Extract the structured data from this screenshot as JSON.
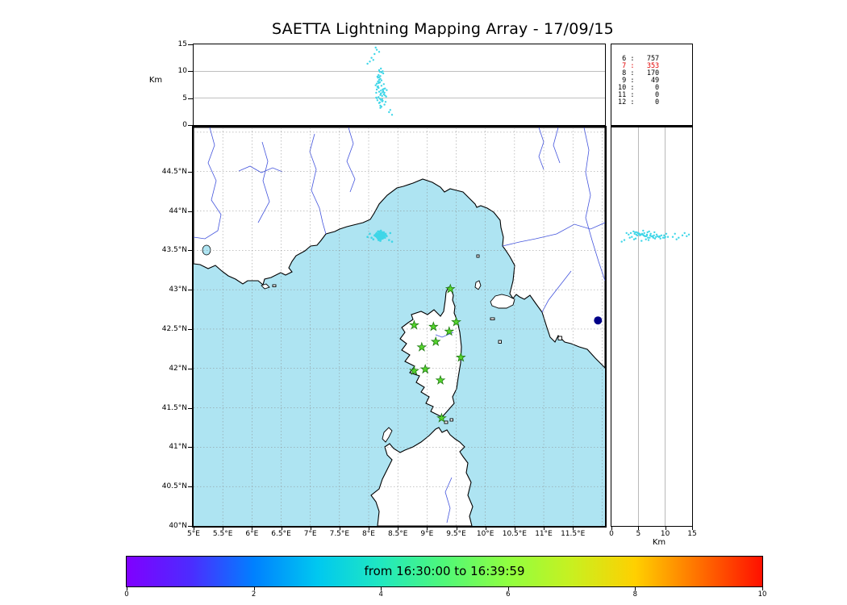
{
  "title": "SAETTA Lightning Mapping Array - 17/09/15",
  "labels": {
    "km": "Km"
  },
  "colors": {
    "sea": "#aee4f2",
    "land": "#ffffff",
    "coastline": "#000000",
    "river": "#4455dd",
    "grid": "#888888",
    "lightning_dot": "#3fd6e8",
    "station_star_fill": "#55d42c",
    "station_star_edge": "#1f7a12",
    "lake_marker": "#000088",
    "highlight_count": "#e00000"
  },
  "station_counts": {
    "rows": [
      {
        "station": "6",
        "count": "757",
        "highlight": false
      },
      {
        "station": "7",
        "count": "353",
        "highlight": true
      },
      {
        "station": "8",
        "count": "170",
        "highlight": false
      },
      {
        "station": "9",
        "count": "49",
        "highlight": false
      },
      {
        "station": "10",
        "count": "0",
        "highlight": false
      },
      {
        "station": "11",
        "count": "0",
        "highlight": false
      },
      {
        "station": "12",
        "count": "0",
        "highlight": false
      }
    ]
  },
  "axes": {
    "alt_tick_values": [
      0,
      5,
      10,
      15
    ],
    "alt_tick_labels": [
      "0",
      "5",
      "10",
      "15"
    ],
    "alt_grid_values": [
      5,
      10
    ],
    "lat_tick_values": [
      40,
      40.5,
      41,
      41.5,
      42,
      42.5,
      43,
      43.5,
      44,
      44.5
    ],
    "lat_tick_labels": [
      "40°N",
      "40.5°N",
      "41°N",
      "41.5°N",
      "42°N",
      "42.5°N",
      "43°N",
      "43.5°N",
      "44°N",
      "44.5°N"
    ],
    "lon_tick_values": [
      5,
      5.5,
      6,
      6.5,
      7,
      7.5,
      8,
      8.5,
      9,
      9.5,
      10,
      10.5,
      11,
      11.5
    ],
    "lon_tick_labels": [
      "5°E",
      "5.5°E",
      "6°E",
      "6.5°E",
      "7°E",
      "7.5°E",
      "8°E",
      "8.5°E",
      "9°E",
      "9.5°E",
      "10°E",
      "10.5°E",
      "11°E",
      "11.5°E"
    ]
  },
  "colorbar": {
    "label": "from 16:30:00 to 16:39:59",
    "tick_values": [
      0,
      2,
      4,
      6,
      8,
      10
    ],
    "tick_labels": [
      "0",
      "2",
      "4",
      "6",
      "8",
      "10"
    ]
  },
  "chart_data": {
    "type": "scatter",
    "title": "SAETTA Lightning Mapping Array - 17/09/15",
    "panels": {
      "top": {
        "x": "longitude_deg_E",
        "y": "altitude_km",
        "xlim": [
          5,
          12.05
        ],
        "ylim": [
          0,
          15
        ],
        "yticks": [
          0,
          5,
          10,
          15
        ],
        "ylabel": "Km",
        "grid_y": [
          5,
          10
        ]
      },
      "main": {
        "x": "longitude_deg_E",
        "y": "latitude_deg_N",
        "xlim": [
          5,
          12.05
        ],
        "ylim": [
          40,
          45.06
        ],
        "xticks": [
          5,
          5.5,
          6,
          6.5,
          7,
          7.5,
          8,
          8.5,
          9,
          9.5,
          10,
          10.5,
          11,
          11.5
        ],
        "yticks": [
          40,
          40.5,
          41,
          41.5,
          42,
          42.5,
          43,
          43.5,
          44,
          44.5
        ],
        "grid": "dashed 0.5deg"
      },
      "right": {
        "x": "altitude_km",
        "y": "latitude_deg_N",
        "xlim": [
          0,
          15
        ],
        "ylim": [
          40,
          45.06
        ],
        "xticks": [
          0,
          5,
          10,
          15
        ],
        "xlabel": "Km",
        "grid_x": [
          5,
          10
        ]
      }
    },
    "time_window": {
      "from": "16:30:00",
      "to": "16:39:59",
      "colorbar_minutes_range": [
        0,
        10
      ]
    },
    "station_source_counts": [
      [
        "6",
        757
      ],
      [
        "7",
        353
      ],
      [
        "8",
        170
      ],
      [
        "9",
        49
      ],
      [
        "10",
        0
      ],
      [
        "11",
        0
      ],
      [
        "12",
        0
      ]
    ],
    "lma_stations_lon_lat": [
      [
        9.4,
        43.01
      ],
      [
        8.78,
        42.55
      ],
      [
        9.11,
        42.53
      ],
      [
        9.38,
        42.47
      ],
      [
        9.5,
        42.59
      ],
      [
        8.91,
        42.27
      ],
      [
        9.15,
        42.34
      ],
      [
        9.58,
        42.14
      ],
      [
        8.78,
        41.97
      ],
      [
        8.97,
        41.99
      ],
      [
        9.23,
        41.85
      ],
      [
        9.25,
        41.37
      ]
    ],
    "lake_marker_lon_lat": [
      11.93,
      42.61
    ],
    "sources_lon_lat_altkm": [
      [
        8.18,
        43.68,
        6.2
      ],
      [
        8.21,
        43.7,
        5.8
      ],
      [
        8.15,
        43.66,
        7.1
      ],
      [
        8.24,
        43.69,
        6.6
      ],
      [
        8.19,
        43.72,
        4.9
      ],
      [
        8.22,
        43.67,
        8.3
      ],
      [
        8.17,
        43.71,
        5.2
      ],
      [
        8.26,
        43.68,
        7.6
      ],
      [
        8.13,
        43.69,
        6.0
      ],
      [
        8.2,
        43.65,
        9.1
      ],
      [
        8.23,
        43.73,
        4.4
      ],
      [
        8.16,
        43.67,
        8.8
      ],
      [
        8.28,
        43.7,
        5.5
      ],
      [
        8.19,
        43.69,
        7.9
      ],
      [
        8.21,
        43.64,
        6.4
      ],
      [
        8.14,
        43.72,
        5.0
      ],
      [
        8.25,
        43.66,
        9.6
      ],
      [
        8.18,
        43.74,
        4.1
      ],
      [
        8.22,
        43.71,
        7.3
      ],
      [
        8.17,
        43.63,
        6.9
      ],
      [
        8.3,
        43.69,
        5.3
      ],
      [
        8.2,
        43.68,
        8.6
      ],
      [
        8.15,
        43.7,
        4.6
      ],
      [
        8.24,
        43.72,
        6.1
      ],
      [
        8.19,
        43.66,
        9.9
      ],
      [
        8.27,
        43.67,
        3.8
      ],
      [
        8.12,
        43.68,
        7.4
      ],
      [
        8.21,
        43.75,
        5.9
      ],
      [
        8.16,
        43.65,
        8.1
      ],
      [
        8.23,
        43.69,
        4.8
      ],
      [
        8.18,
        43.71,
        10.2
      ],
      [
        8.26,
        43.73,
        6.7
      ],
      [
        8.2,
        43.62,
        5.6
      ],
      [
        8.14,
        43.67,
        7.7
      ],
      [
        8.29,
        43.71,
        4.3
      ],
      [
        8.17,
        43.69,
        9.3
      ],
      [
        8.22,
        43.66,
        3.4
      ],
      [
        8.19,
        43.73,
        8.0
      ],
      [
        8.25,
        43.68,
        6.3
      ],
      [
        8.13,
        43.71,
        5.1
      ],
      [
        8.21,
        43.67,
        10.5
      ],
      [
        8.16,
        43.74,
        7.0
      ],
      [
        8.24,
        43.65,
        4.5
      ],
      [
        8.18,
        43.7,
        8.4
      ],
      [
        8.28,
        43.66,
        6.8
      ],
      [
        8.2,
        43.72,
        3.6
      ],
      [
        8.15,
        43.68,
        9.0
      ],
      [
        8.23,
        43.7,
        5.4
      ],
      [
        8.17,
        43.66,
        7.8
      ],
      [
        8.31,
        43.68,
        6.5
      ],
      [
        8.19,
        43.64,
        4.2
      ],
      [
        8.22,
        43.69,
        9.8
      ],
      [
        8.14,
        43.7,
        6.6
      ],
      [
        8.26,
        43.71,
        5.7
      ],
      [
        8.18,
        43.67,
        8.9
      ],
      [
        8.21,
        43.73,
        4.7
      ],
      [
        8.16,
        43.69,
        7.2
      ],
      [
        8.24,
        43.67,
        10.0
      ],
      [
        8.2,
        43.7,
        3.2
      ],
      [
        8.27,
        43.69,
        6.0
      ],
      [
        8.05,
        43.66,
        12.5
      ],
      [
        8.1,
        43.69,
        13.2
      ],
      [
        8.02,
        43.71,
        11.8
      ],
      [
        8.14,
        43.68,
        14.0
      ],
      [
        8.08,
        43.64,
        12.1
      ],
      [
        8.18,
        43.72,
        13.6
      ],
      [
        7.98,
        43.67,
        11.4
      ],
      [
        8.12,
        43.7,
        14.4
      ],
      [
        8.35,
        43.63,
        2.4
      ],
      [
        8.4,
        43.61,
        1.9
      ],
      [
        8.37,
        43.72,
        2.8
      ]
    ]
  }
}
